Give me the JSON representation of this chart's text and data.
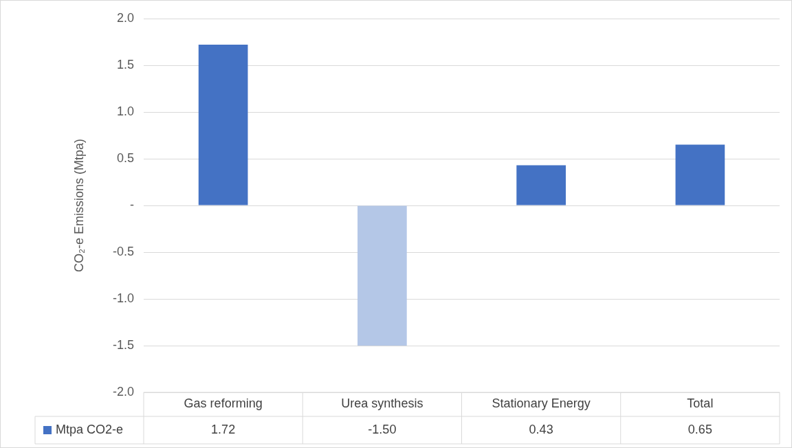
{
  "chart_data": {
    "type": "bar",
    "ylabel": "CO₂-e Emissions (Mtpa)",
    "categories": [
      "Gas reforming",
      "Urea synthesis",
      "Stationary Energy",
      "Total"
    ],
    "series": [
      {
        "name": "Mtpa CO2-e",
        "color": "#4472c4",
        "colors": [
          "#4472c4",
          "#b4c7e7",
          "#4472c4",
          "#4472c4"
        ],
        "values": [
          1.72,
          -1.5,
          0.43,
          0.65
        ],
        "value_labels": [
          "1.72",
          "-1.50",
          "0.43",
          "0.65"
        ]
      }
    ],
    "ylim": [
      -2,
      2
    ],
    "yticks": [
      {
        "value": 2,
        "label": "2.0"
      },
      {
        "value": 1.5,
        "label": "1.5"
      },
      {
        "value": 1,
        "label": "1.0"
      },
      {
        "value": 0.5,
        "label": "0.5"
      },
      {
        "value": 0,
        "label": "-"
      },
      {
        "value": -0.5,
        "label": "-0.5"
      },
      {
        "value": -1,
        "label": "-1.0"
      },
      {
        "value": -1.5,
        "label": "-1.5"
      },
      {
        "value": -2,
        "label": "-2.0"
      }
    ],
    "grid": "y",
    "legend": "bottom"
  }
}
